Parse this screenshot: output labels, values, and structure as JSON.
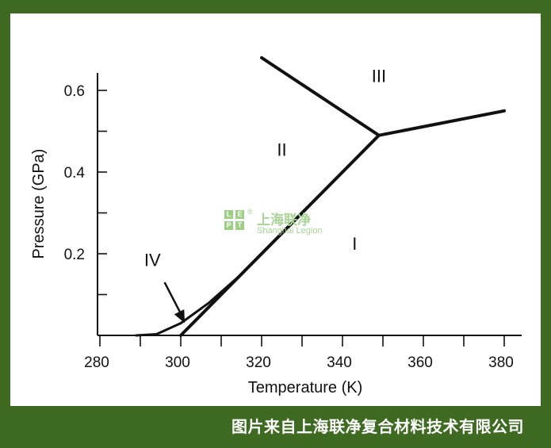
{
  "chart_data": {
    "type": "line",
    "title": "",
    "xlabel": "Temperature (K)",
    "ylabel": "Pressure (GPa)",
    "xlim": [
      280,
      380
    ],
    "ylim": [
      0,
      0.6
    ],
    "x_ticks": [
      280,
      300,
      320,
      340,
      360,
      380
    ],
    "y_ticks": [
      0.2,
      0.4,
      0.6
    ],
    "grid": false,
    "series": [
      {
        "points": [
          [
            300,
            0
          ],
          [
            322,
            0.22
          ],
          [
            349,
            0.49
          ]
        ]
      },
      {
        "points": [
          [
            320,
            0.68
          ],
          [
            349,
            0.49
          ]
        ]
      },
      {
        "points": [
          [
            349,
            0.49
          ],
          [
            380,
            0.55
          ]
        ]
      },
      {
        "points": [
          [
            289,
            0
          ],
          [
            294,
            0.003
          ],
          [
            300,
            0.03
          ],
          [
            307,
            0.08
          ],
          [
            315,
            0.15
          ],
          [
            322,
            0.22
          ]
        ]
      }
    ],
    "region_labels": [
      {
        "text": "I",
        "x": 343,
        "y": 0.21
      },
      {
        "text": "II",
        "x": 325,
        "y": 0.44
      },
      {
        "text": "III",
        "x": 349,
        "y": 0.62
      },
      {
        "text": "IV",
        "x": 293,
        "y": 0.17
      }
    ],
    "arrow": {
      "from": [
        296,
        0.13
      ],
      "to": [
        301,
        0.03
      ]
    }
  },
  "watermark": {
    "letters": [
      "L",
      "E",
      "P",
      "T"
    ],
    "cn": "上海联净",
    "en": "Shanghai Legion",
    "reg": "®"
  },
  "footer": {
    "text": "图片来自上海联净复合材料技术有限公司"
  },
  "colors": {
    "frame": "#3f6a22",
    "ink": "#111111",
    "watermark": "#9bcf84"
  }
}
